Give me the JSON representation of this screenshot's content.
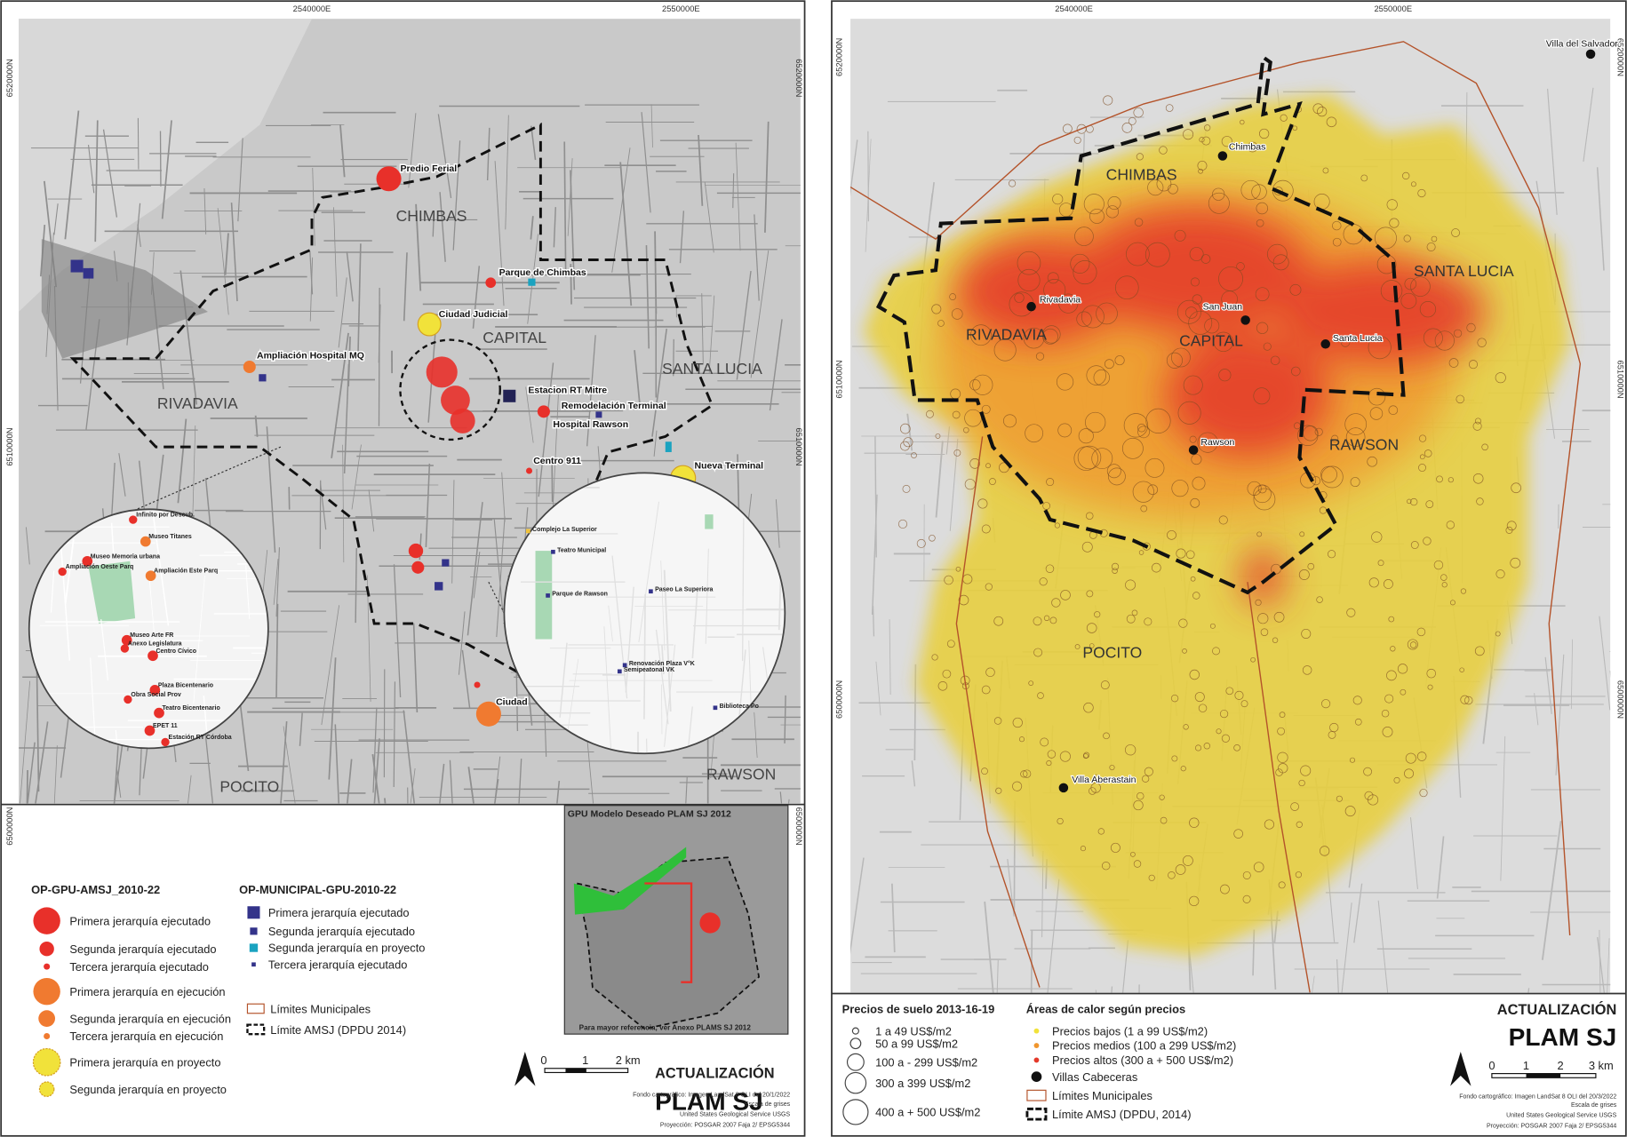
{
  "left_map": {
    "coords_top": [
      "2540000E",
      "2550000E"
    ],
    "coords_side": [
      "6520000N",
      "6510000N",
      "6500000N"
    ],
    "districts": [
      "CHIMBAS",
      "CAPITAL",
      "SANTA LUCIA",
      "RIVADAVIA",
      "POCITO",
      "RAWSON"
    ],
    "places": [
      "Predio Ferial",
      "Parque de Chimbas",
      "Ciudad Judicial",
      "Ampliación Hospital MQ",
      "Estacion RT Mitre",
      "Remodelación Terminal",
      "Hospital Rawson",
      "Centro 911",
      "Nueva Terminal",
      "Ciudad"
    ],
    "inset_left": [
      "Infinito por Descub.",
      "Museo Titanes",
      "Museo Memoria urbana",
      "Ampliación Oeste Parq",
      "Ampliación Este Parq",
      "Museo Arte FR",
      "Anexo Legislatura",
      "Centro Cívico",
      "Plaza Bicentenario",
      "Obra Social Prov",
      "Teatro Bicentenario",
      "EPET 11",
      "Estación RT Córdoba"
    ],
    "inset_right": [
      "Complejo La Superior",
      "Teatro Municipal",
      "Parque de Rawson",
      "Paseo La Superiora",
      "Renovación Plaza V°K",
      "Semipeatonal VK",
      "Biblioteca Po"
    ],
    "inset_map_title": "GPU Modelo Deseado PLAM SJ 2012",
    "inset_map_note": "Para mayor referencia, ver Anexo PLAMS SJ 2012",
    "legend_gpu": {
      "title": "OP-GPU-AMSJ_2010-22",
      "items": [
        "Primera jerarquía ejecutado",
        "Segunda jerarquía ejecutado",
        "Tercera jerarquía ejecutado",
        "Primera jerarquía en ejecución",
        "Segunda jerarquía en ejecución",
        "Tercera jerarquía en ejecución",
        "Primera jerarquía en proyecto",
        "Segunda jerarquía en proyecto"
      ]
    },
    "legend_municipal": {
      "title": "OP-MUNICIPAL-GPU-2010-22",
      "items": [
        "Primera jerarquía ejecutado",
        "Segunda jerarquía ejecutado",
        "Segunda jerarquía en proyecto",
        "Tercera jerarquía ejecutado"
      ]
    },
    "legend_lines": [
      "Límites Municipales",
      "Límite AMSJ (DPDU 2014)"
    ],
    "scale": [
      "0",
      "1",
      "2 km"
    ],
    "brand": [
      "ACTUALIZACIÓN",
      "PLAM SJ"
    ],
    "credits": [
      "Fondo cartográfico: Imagen LandSat 8 OLI del 20/1/2022",
      "Escala de grises",
      "United States Geological Service USGS",
      "Proyección: POSGAR 2007 Faja 2/ EPSG5344"
    ]
  },
  "right_map": {
    "coords_top": [
      "2540000E",
      "2550000E"
    ],
    "coords_side": [
      "6520000N",
      "6510000N",
      "6500000N"
    ],
    "districts": [
      "CHIMBAS",
      "SANTA LUCIA",
      "RIVADAVIA",
      "CAPITAL",
      "RAWSON",
      "POCITO"
    ],
    "villas": [
      "Villa del Salvador",
      "Chimbas",
      "Rivadavia",
      "San Juan",
      "Santa Lucia",
      "Rawson",
      "Villa Aberastain"
    ],
    "legend_prices": {
      "title": "Precios de suelo 2013-16-19",
      "items": [
        "1 a 49 US$/m2",
        "50 a 99 US$/m2",
        "100 a - 299 US$/m2",
        "300 a 399 US$/m2",
        "400 a + 500 US$/m2"
      ]
    },
    "legend_heat": {
      "title": "Áreas de calor según precios",
      "items": [
        "Precios bajos (1 a 99 US$/m2)",
        "Precios medios (100 a 299 US$/m2)",
        "Precios altos (300 a + 500 US$/m2)",
        "Villas Cabeceras",
        "Límites Municipales",
        "Límite AMSJ (DPDU, 2014)"
      ]
    },
    "scale": [
      "0",
      "1",
      "2",
      "3 km"
    ],
    "brand": [
      "ACTUALIZACIÓN",
      "PLAM SJ"
    ],
    "credits": [
      "Fondo cartográfico: Imagen LandSat 8 OLI del 20/3/2022",
      "Escala de grises",
      "United States Geological Service USGS",
      "Proyección: POSGAR 2007 Faja 2/ EPSG5344"
    ]
  }
}
